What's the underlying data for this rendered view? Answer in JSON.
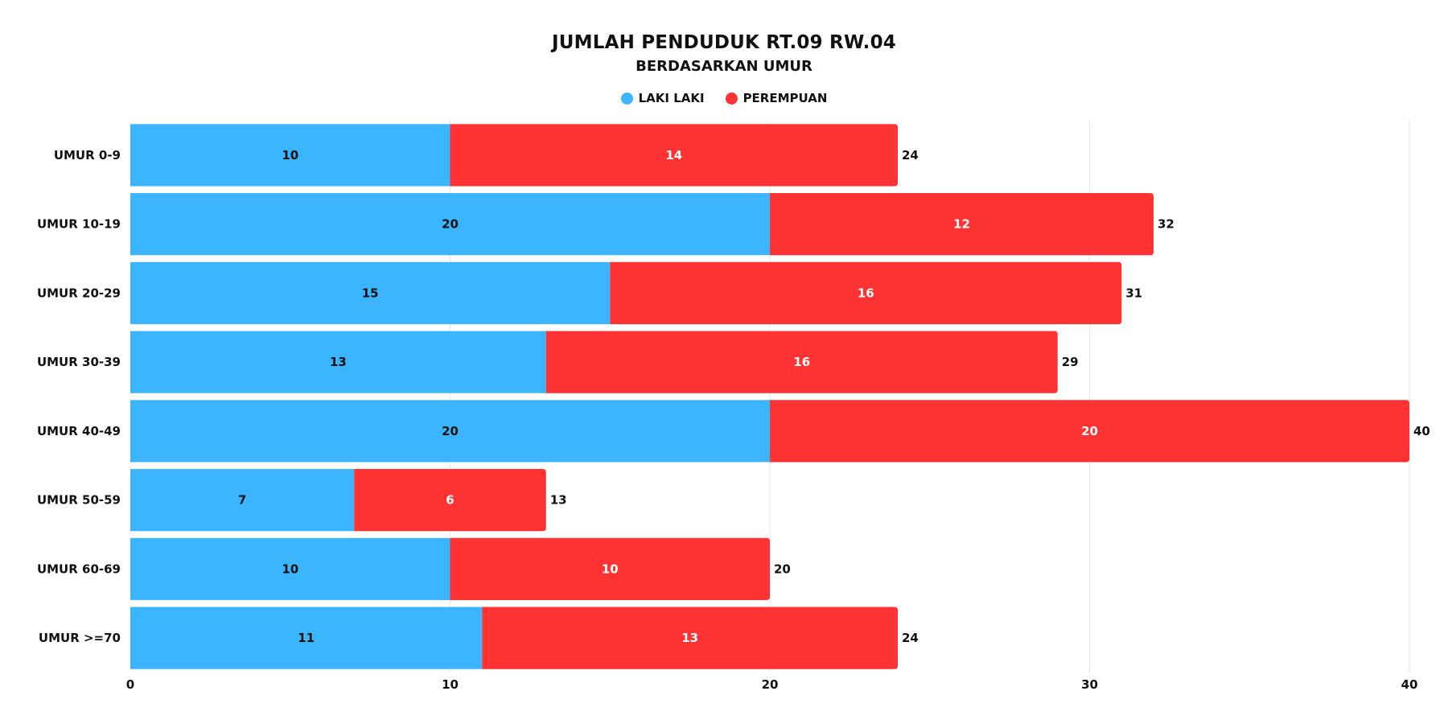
{
  "chart_data": {
    "type": "bar",
    "orientation": "horizontal",
    "stacked": true,
    "title": "JUMLAH PENDUDUK RT.09 RW.04",
    "subtitle": "BERDASARKAN UMUR",
    "categories": [
      "UMUR 0-9",
      "UMUR 10-19",
      "UMUR 20-29",
      "UMUR 30-39",
      "UMUR 40-49",
      "UMUR 50-59",
      "UMUR 60-69",
      "UMUR >=70"
    ],
    "series": [
      {
        "name": "LAKI LAKI",
        "color": "#3bb5ff",
        "label_color": "#111111",
        "values": [
          10,
          20,
          15,
          13,
          20,
          7,
          10,
          11
        ]
      },
      {
        "name": "PEREMPUAN",
        "color": "#ff3333",
        "label_color": "#ffffff",
        "values": [
          14,
          12,
          16,
          16,
          20,
          6,
          10,
          13
        ]
      }
    ],
    "totals": [
      24,
      32,
      31,
      29,
      40,
      13,
      20,
      24
    ],
    "xlim": [
      0,
      40
    ],
    "xticks": [
      "0",
      "10",
      "20",
      "30",
      "40"
    ],
    "grid": true,
    "legend_position": "top-center"
  }
}
